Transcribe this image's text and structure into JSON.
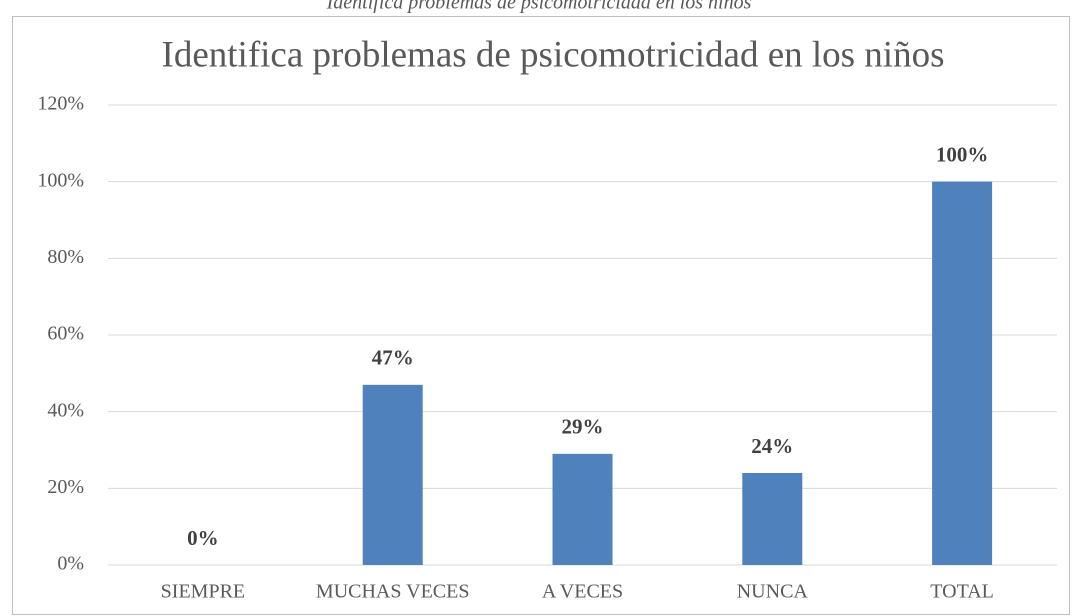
{
  "chart_data": {
    "type": "bar",
    "caption": "Identifica problemas de psicomotricidad en los niños",
    "title": "Identifica problemas de psicomotricidad en los niños",
    "categories": [
      "SIEMPRE",
      "MUCHAS VECES",
      "A VECES",
      "NUNCA",
      "TOTAL"
    ],
    "values": [
      0,
      47,
      29,
      24,
      100
    ],
    "value_labels": [
      "0%",
      "47%",
      "29%",
      "24%",
      "100%"
    ],
    "color": "#4f81bd",
    "ylim": [
      0,
      120
    ],
    "yticks": [
      {
        "value": 0,
        "label": "0%"
      },
      {
        "value": 20,
        "label": "20%"
      },
      {
        "value": 40,
        "label": "40%"
      },
      {
        "value": 60,
        "label": "60%"
      },
      {
        "value": 80,
        "label": "80%"
      },
      {
        "value": 100,
        "label": "100%"
      },
      {
        "value": 120,
        "label": "120%"
      }
    ],
    "grid": true
  }
}
